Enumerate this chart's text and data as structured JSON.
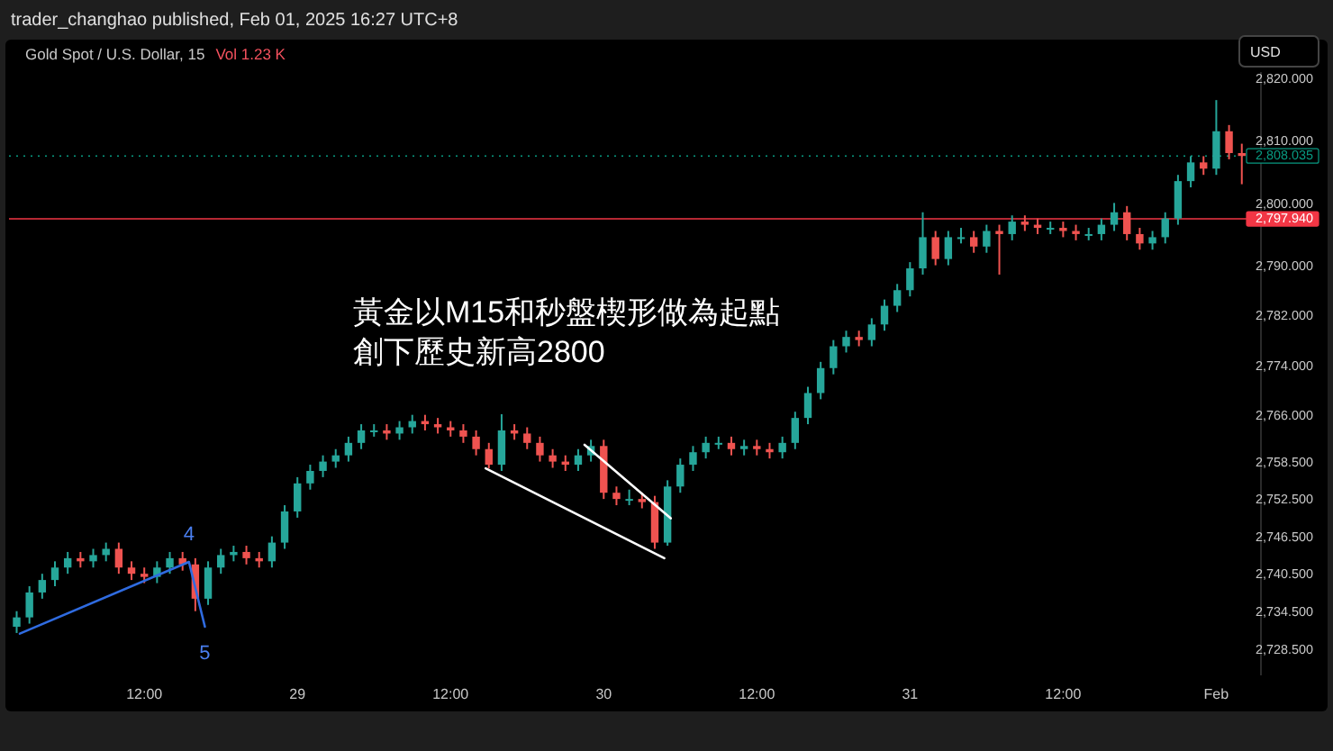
{
  "chart_data": {
    "type": "candlestick",
    "title": "Gold Spot / U.S. Dollar, 15",
    "subtitle": "Vol 1.23 K",
    "ylabel": "USD",
    "annotations": [
      "trader_changhao published, Feb 01, 2025 16:27 UTC+8",
      "黃金以M15和秒盤楔形做為起點",
      "創下歷史新高2800",
      {
        "text": "4",
        "x": "2025-01-28T15:30",
        "y": 2742.9
      },
      {
        "text": "5",
        "x": "2025-01-28T16:45",
        "y": 2732.5
      }
    ],
    "xlim": [
      "2025-01-28T01:24",
      "2025-02-01T03:30"
    ],
    "xticks": [
      {
        "value": "2025-01-28T12:00",
        "label": "12:00"
      },
      {
        "value": "2025-01-29T00:00",
        "label": "29"
      },
      {
        "value": "2025-01-29T12:00",
        "label": "12:00"
      },
      {
        "value": "2025-01-30T00:00",
        "label": "30"
      },
      {
        "value": "2025-01-30T12:00",
        "label": "12:00"
      },
      {
        "value": "2025-01-31T00:00",
        "label": "31"
      },
      {
        "value": "2025-01-31T12:00",
        "label": "12:00"
      },
      {
        "value": "2025-02-01T00:00",
        "label": "Feb"
      }
    ],
    "ylim": [
      2724.7,
      2821.5
    ],
    "yticks": [
      {
        "value": 2820,
        "label": "2,820.000"
      },
      {
        "value": 2810,
        "label": "2,810.000"
      },
      {
        "value": 2800,
        "label": "2,800.000"
      },
      {
        "value": 2790,
        "label": "2,790.000"
      },
      {
        "value": 2782,
        "label": "2,782.000"
      },
      {
        "value": 2774,
        "label": "2,774.000"
      },
      {
        "value": 2766,
        "label": "2,766.000"
      },
      {
        "value": 2758.5,
        "label": "2,758.500"
      },
      {
        "value": 2752.5,
        "label": "2,752.500"
      },
      {
        "value": 2746.5,
        "label": "2,746.500"
      },
      {
        "value": 2740.5,
        "label": "2,740.500"
      },
      {
        "value": 2734.5,
        "label": "2,734.500"
      },
      {
        "value": 2728.5,
        "label": "2,728.500"
      }
    ],
    "ref_lines": [
      {
        "axis": "y",
        "value": 2797.94,
        "label": "2,797.940",
        "color": "#f23645",
        "line_style": "solid"
      },
      {
        "axis": "y",
        "value": 2808.035,
        "label": "2,808.035",
        "color": "#089981",
        "line_style": "dotted"
      }
    ],
    "series": [
      {
        "x": [
          "2025-01-28T02:00",
          "2025-01-28T03:00",
          "2025-01-28T04:00",
          "2025-01-28T05:00",
          "2025-01-28T06:00",
          "2025-01-28T07:00",
          "2025-01-28T08:00",
          "2025-01-28T09:00",
          "2025-01-28T10:00",
          "2025-01-28T11:00",
          "2025-01-28T12:00",
          "2025-01-28T13:00",
          "2025-01-28T14:00",
          "2025-01-28T15:00",
          "2025-01-28T16:00",
          "2025-01-28T17:00",
          "2025-01-28T18:00",
          "2025-01-28T19:00",
          "2025-01-28T20:00",
          "2025-01-28T21:00",
          "2025-01-28T22:00",
          "2025-01-28T23:00",
          "2025-01-29T00:00",
          "2025-01-29T01:00",
          "2025-01-29T02:00",
          "2025-01-29T03:00",
          "2025-01-29T04:00",
          "2025-01-29T05:00",
          "2025-01-29T06:00",
          "2025-01-29T07:00",
          "2025-01-29T08:00",
          "2025-01-29T09:00",
          "2025-01-29T10:00",
          "2025-01-29T11:00",
          "2025-01-29T12:00",
          "2025-01-29T13:00",
          "2025-01-29T14:00",
          "2025-01-29T15:00",
          "2025-01-29T16:00",
          "2025-01-29T17:00",
          "2025-01-29T18:00",
          "2025-01-29T19:00",
          "2025-01-29T20:00",
          "2025-01-29T21:00",
          "2025-01-29T22:00",
          "2025-01-29T23:00",
          "2025-01-30T00:00",
          "2025-01-30T01:00",
          "2025-01-30T02:00",
          "2025-01-30T03:00",
          "2025-01-30T04:00",
          "2025-01-30T05:00",
          "2025-01-30T06:00",
          "2025-01-30T07:00",
          "2025-01-30T08:00",
          "2025-01-30T09:00",
          "2025-01-30T10:00",
          "2025-01-30T11:00",
          "2025-01-30T12:00",
          "2025-01-30T13:00",
          "2025-01-30T14:00",
          "2025-01-30T15:00",
          "2025-01-30T16:00",
          "2025-01-30T17:00",
          "2025-01-30T18:00",
          "2025-01-30T19:00",
          "2025-01-30T20:00",
          "2025-01-30T21:00",
          "2025-01-30T22:00",
          "2025-01-30T23:00",
          "2025-01-31T00:00",
          "2025-01-31T01:00",
          "2025-01-31T02:00",
          "2025-01-31T03:00",
          "2025-01-31T04:00",
          "2025-01-31T05:00",
          "2025-01-31T06:00",
          "2025-01-31T07:00",
          "2025-01-31T08:00",
          "2025-01-31T09:00",
          "2025-01-31T10:00",
          "2025-01-31T11:00",
          "2025-01-31T12:00",
          "2025-01-31T13:00",
          "2025-01-31T14:00",
          "2025-01-31T15:00",
          "2025-01-31T16:00",
          "2025-01-31T17:00",
          "2025-01-31T18:00",
          "2025-01-31T19:00",
          "2025-01-31T20:00",
          "2025-01-31T21:00",
          "2025-01-31T22:00",
          "2025-01-31T23:00",
          "2025-02-01T00:00",
          "2025-02-01T01:00",
          "2025-02-01T02:00"
        ],
        "ohlc": [
          [
            2732.5,
            2735,
            2731.5,
            2734
          ],
          [
            2734,
            2739,
            2733,
            2738
          ],
          [
            2738,
            2741,
            2737,
            2740
          ],
          [
            2740,
            2743,
            2739,
            2742
          ],
          [
            2742,
            2744.5,
            2741,
            2743.5
          ],
          [
            2743.5,
            2744.5,
            2742,
            2743
          ],
          [
            2743,
            2745,
            2742,
            2744
          ],
          [
            2744,
            2746,
            2743,
            2745
          ],
          [
            2745,
            2746,
            2741,
            2742
          ],
          [
            2742,
            2743,
            2740,
            2741
          ],
          [
            2741,
            2742,
            2739.5,
            2740.5
          ],
          [
            2740.5,
            2743,
            2739.5,
            2742
          ],
          [
            2742,
            2744.5,
            2741,
            2743.5
          ],
          [
            2743.5,
            2744.5,
            2741.5,
            2742.5
          ],
          [
            2742.5,
            2743.5,
            2735,
            2737
          ],
          [
            2737,
            2743,
            2736,
            2742
          ],
          [
            2742,
            2745,
            2741,
            2744
          ],
          [
            2744,
            2745.5,
            2743,
            2744.5
          ],
          [
            2744.5,
            2745.5,
            2742.5,
            2743.5
          ],
          [
            2743.5,
            2744.5,
            2742,
            2743
          ],
          [
            2743,
            2747,
            2742,
            2746
          ],
          [
            2746,
            2752,
            2745,
            2751
          ],
          [
            2751,
            2756.5,
            2750,
            2755.5
          ],
          [
            2755.5,
            2758.5,
            2754.5,
            2757.5
          ],
          [
            2757.5,
            2760,
            2756.5,
            2759
          ],
          [
            2759,
            2761,
            2758,
            2760
          ],
          [
            2760,
            2763,
            2759,
            2762
          ],
          [
            2762,
            2765,
            2761,
            2764
          ],
          [
            2764,
            2765,
            2763,
            2764
          ],
          [
            2764,
            2765,
            2762.5,
            2763.5
          ],
          [
            2763.5,
            2765.5,
            2762.5,
            2764.5
          ],
          [
            2764.5,
            2766.5,
            2763.5,
            2765.5
          ],
          [
            2765.5,
            2766.5,
            2764,
            2765
          ],
          [
            2765,
            2766,
            2763.5,
            2764.5
          ],
          [
            2764.5,
            2765.5,
            2763,
            2764
          ],
          [
            2764,
            2765,
            2762,
            2763
          ],
          [
            2763,
            2764,
            2760,
            2761
          ],
          [
            2761,
            2762,
            2757.9,
            2758.5
          ],
          [
            2758.5,
            2766.6,
            2757.5,
            2764
          ],
          [
            2764,
            2765,
            2762.5,
            2763.5
          ],
          [
            2763.5,
            2764.5,
            2761,
            2762
          ],
          [
            2762,
            2763,
            2759,
            2760
          ],
          [
            2760,
            2761,
            2758,
            2759
          ],
          [
            2759,
            2760,
            2757.5,
            2758.5
          ],
          [
            2758.5,
            2761,
            2757.5,
            2760
          ],
          [
            2760,
            2762.5,
            2759,
            2761.5
          ],
          [
            2761.5,
            2762.5,
            2753,
            2754
          ],
          [
            2754,
            2755,
            2752,
            2753
          ],
          [
            2753,
            2754.5,
            2752,
            2753
          ],
          [
            2753,
            2754,
            2751.5,
            2752.5
          ],
          [
            2752.5,
            2753.5,
            2745,
            2746
          ],
          [
            2746,
            2756,
            2745.5,
            2755
          ],
          [
            2755,
            2759.5,
            2754,
            2758.5
          ],
          [
            2758.5,
            2761.5,
            2757.5,
            2760.5
          ],
          [
            2760.5,
            2763,
            2759.5,
            2762
          ],
          [
            2762,
            2763,
            2761,
            2762
          ],
          [
            2762,
            2763,
            2760,
            2761
          ],
          [
            2761,
            2762.5,
            2760,
            2761.5
          ],
          [
            2761.5,
            2762.5,
            2760,
            2761
          ],
          [
            2761,
            2762,
            2759.5,
            2760.5
          ],
          [
            2760.5,
            2763,
            2759.5,
            2762
          ],
          [
            2762,
            2767,
            2761,
            2766
          ],
          [
            2766,
            2771,
            2765,
            2770
          ],
          [
            2770,
            2775,
            2769,
            2774
          ],
          [
            2774,
            2778.5,
            2773,
            2777.5
          ],
          [
            2777.5,
            2780,
            2776.5,
            2779
          ],
          [
            2779,
            2780,
            2777.5,
            2778.5
          ],
          [
            2778.5,
            2782,
            2777.5,
            2781
          ],
          [
            2781,
            2785,
            2780,
            2784
          ],
          [
            2784,
            2787.5,
            2783,
            2786.5
          ],
          [
            2786.5,
            2791,
            2785.5,
            2790
          ],
          [
            2790,
            2799,
            2789,
            2795
          ],
          [
            2795,
            2796,
            2790.5,
            2791.5
          ],
          [
            2791.5,
            2796,
            2790.5,
            2795
          ],
          [
            2795,
            2796.5,
            2794,
            2795
          ],
          [
            2795,
            2796,
            2792.5,
            2793.5
          ],
          [
            2793.5,
            2797,
            2792.5,
            2796
          ],
          [
            2796,
            2797,
            2789,
            2795.5
          ],
          [
            2795.5,
            2798.5,
            2794.5,
            2797.5
          ],
          [
            2797.5,
            2798.5,
            2796,
            2797
          ],
          [
            2797,
            2798,
            2795.5,
            2796.5
          ],
          [
            2796.5,
            2797.5,
            2795.5,
            2796.5
          ],
          [
            2796.5,
            2797.5,
            2795,
            2796
          ],
          [
            2796,
            2797,
            2794.5,
            2795.5
          ],
          [
            2795.5,
            2796.5,
            2794.5,
            2795.5
          ],
          [
            2795.5,
            2798,
            2794.5,
            2797
          ],
          [
            2797,
            2800.5,
            2796,
            2799
          ],
          [
            2799,
            2800,
            2794.5,
            2795.5
          ],
          [
            2795.5,
            2796.5,
            2793,
            2794
          ],
          [
            2794,
            2796,
            2793,
            2795
          ],
          [
            2795,
            2799,
            2794,
            2798
          ],
          [
            2798,
            2805,
            2797,
            2804
          ],
          [
            2804,
            2808,
            2803,
            2807
          ],
          [
            2807,
            2808,
            2805,
            2806
          ],
          [
            2806,
            2817,
            2805,
            2812
          ],
          [
            2812,
            2813,
            2807.5,
            2808.5
          ],
          [
            2808.5,
            2810,
            2803.5,
            2808.035
          ]
        ],
        "colors": [
          "#26a69a",
          "#26a69a",
          "#26a69a",
          "#26a69a",
          "#26a69a",
          "#ef5350",
          "#26a69a",
          "#26a69a",
          "#ef5350",
          "#ef5350",
          "#ef5350",
          "#26a69a",
          "#26a69a",
          "#ef5350",
          "#ef5350",
          "#26a69a",
          "#26a69a",
          "#26a69a",
          "#ef5350",
          "#ef5350",
          "#26a69a",
          "#26a69a",
          "#26a69a",
          "#26a69a",
          "#26a69a",
          "#26a69a",
          "#26a69a",
          "#26a69a",
          "#26a69a",
          "#ef5350",
          "#26a69a",
          "#26a69a",
          "#ef5350",
          "#ef5350",
          "#ef5350",
          "#ef5350",
          "#ef5350",
          "#ef5350",
          "#26a69a",
          "#ef5350",
          "#ef5350",
          "#ef5350",
          "#ef5350",
          "#ef5350",
          "#26a69a",
          "#26a69a",
          "#ef5350",
          "#ef5350",
          "#26a69a",
          "#ef5350",
          "#ef5350",
          "#26a69a",
          "#26a69a",
          "#26a69a",
          "#26a69a",
          "#26a69a",
          "#ef5350",
          "#26a69a",
          "#ef5350",
          "#ef5350",
          "#26a69a",
          "#26a69a",
          "#26a69a",
          "#26a69a",
          "#26a69a",
          "#26a69a",
          "#ef5350",
          "#26a69a",
          "#26a69a",
          "#26a69a",
          "#26a69a",
          "#26a69a",
          "#ef5350",
          "#26a69a",
          "#26a69a",
          "#ef5350",
          "#26a69a",
          "#ef5350",
          "#26a69a",
          "#ef5350",
          "#ef5350",
          "#26a69a",
          "#ef5350",
          "#ef5350",
          "#26a69a",
          "#26a69a",
          "#26a69a",
          "#ef5350",
          "#ef5350",
          "#26a69a",
          "#26a69a",
          "#26a69a",
          "#26a69a",
          "#ef5350",
          "#26a69a",
          "#ef5350",
          "#ef5350"
        ]
      },
      {
        "type": "line",
        "color": "#2f6be0",
        "x": [
          "2025-01-28T02:15",
          "2025-01-28T15:30",
          "2025-01-28T16:45"
        ],
        "values": [
          2731.4,
          2742.9,
          2732.5
        ]
      },
      {
        "type": "line",
        "color": "#ffffff",
        "x": [
          "2025-01-29T14:45",
          "2025-01-30T04:45"
        ],
        "values": [
          2757.9,
          2743.5
        ]
      },
      {
        "type": "line",
        "color": "#ffffff",
        "x": [
          "2025-01-29T22:30",
          "2025-01-30T05:15"
        ],
        "values": [
          2761.7,
          2749.9
        ]
      }
    ]
  }
}
